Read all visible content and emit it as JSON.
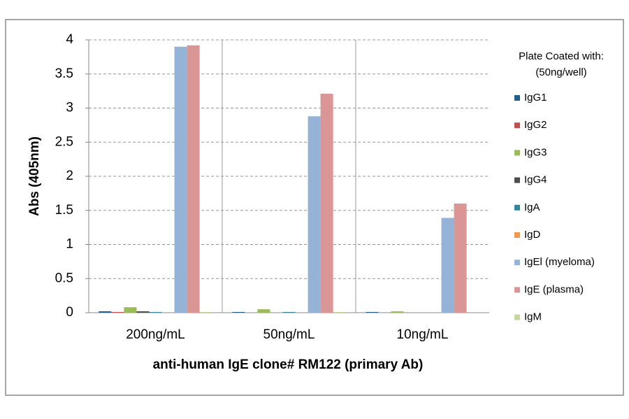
{
  "chart_data": {
    "type": "bar",
    "x_label": "anti-human IgE clone# RM122 (primary Ab)",
    "y_label": "Abs (405nm)",
    "legend_title": [
      "Plate Coated with:",
      "(50ng/well)"
    ],
    "categories": [
      "200ng/mL",
      "50ng/mL",
      "10ng/mL"
    ],
    "series": [
      {
        "name": "IgG1",
        "color": "#1f5f8b",
        "values": [
          0.02,
          0.01,
          0.01
        ]
      },
      {
        "name": "IgG2",
        "color": "#c0504d",
        "values": [
          0.01,
          0,
          0
        ]
      },
      {
        "name": "IgG3",
        "color": "#9bbb59",
        "values": [
          0.08,
          0.05,
          0.02
        ]
      },
      {
        "name": "IgG4",
        "color": "#4d4d4d",
        "values": [
          0.02,
          0,
          0
        ]
      },
      {
        "name": "IgA",
        "color": "#31859c",
        "values": [
          0.01,
          0.01,
          0
        ]
      },
      {
        "name": "IgD",
        "color": "#f79646",
        "values": [
          0,
          0,
          0
        ]
      },
      {
        "name": "IgEl (myeloma)",
        "color": "#95b3d7",
        "values": [
          3.9,
          2.88,
          1.39
        ]
      },
      {
        "name": "IgE (plasma)",
        "color": "#d99694",
        "values": [
          3.92,
          3.21,
          1.6
        ]
      },
      {
        "name": "IgM",
        "color": "#c3d69b",
        "values": [
          0.01,
          0.01,
          0
        ]
      }
    ],
    "ylim": [
      0,
      4
    ],
    "yticks": [
      0,
      0.5,
      1,
      1.5,
      2,
      2.5,
      3,
      3.5,
      4
    ],
    "grid": true,
    "legend": "right"
  }
}
